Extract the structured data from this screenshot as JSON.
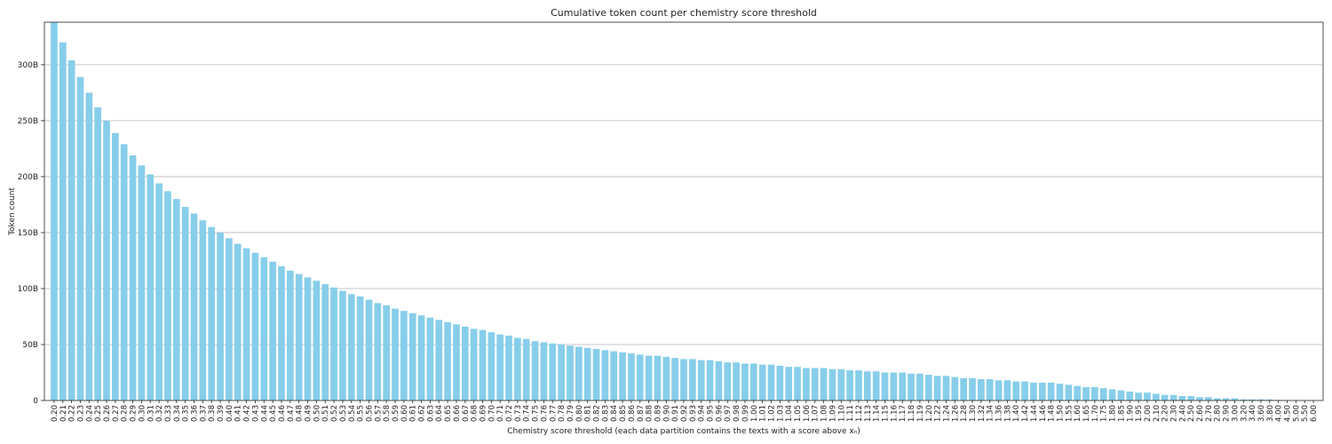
{
  "chart_data": {
    "type": "bar",
    "title": "Cumulative token count per chemistry score threshold",
    "xlabel": "Chemistry score threshold (each data partition contains the texts with a score above xₙ)",
    "ylabel": "Token count",
    "ylim": [
      0,
      338
    ],
    "value_unit": "billions of tokens",
    "yticks": [
      0,
      50,
      100,
      150,
      200,
      250,
      300
    ],
    "ytick_labels": [
      "0",
      "50B",
      "100B",
      "150B",
      "200B",
      "250B",
      "300B"
    ],
    "grid": "y",
    "bar_color": "#87CEEB",
    "categories": [
      "0.20",
      "0.21",
      "0.22",
      "0.23",
      "0.24",
      "0.25",
      "0.26",
      "0.27",
      "0.28",
      "0.29",
      "0.30",
      "0.31",
      "0.32",
      "0.33",
      "0.34",
      "0.35",
      "0.36",
      "0.37",
      "0.38",
      "0.39",
      "0.40",
      "0.41",
      "0.42",
      "0.43",
      "0.44",
      "0.45",
      "0.46",
      "0.47",
      "0.48",
      "0.49",
      "0.50",
      "0.51",
      "0.52",
      "0.53",
      "0.54",
      "0.55",
      "0.56",
      "0.57",
      "0.58",
      "0.59",
      "0.60",
      "0.61",
      "0.62",
      "0.63",
      "0.64",
      "0.65",
      "0.66",
      "0.67",
      "0.68",
      "0.69",
      "0.70",
      "0.71",
      "0.72",
      "0.73",
      "0.74",
      "0.75",
      "0.76",
      "0.77",
      "0.78",
      "0.79",
      "0.80",
      "0.81",
      "0.82",
      "0.83",
      "0.84",
      "0.85",
      "0.86",
      "0.87",
      "0.88",
      "0.89",
      "0.90",
      "0.91",
      "0.92",
      "0.93",
      "0.94",
      "0.95",
      "0.96",
      "0.97",
      "0.98",
      "0.99",
      "1.00",
      "1.01",
      "1.02",
      "1.03",
      "1.04",
      "1.05",
      "1.06",
      "1.07",
      "1.08",
      "1.09",
      "1.10",
      "1.11",
      "1.12",
      "1.13",
      "1.14",
      "1.15",
      "1.16",
      "1.17",
      "1.18",
      "1.19",
      "1.20",
      "1.22",
      "1.24",
      "1.26",
      "1.28",
      "1.30",
      "1.32",
      "1.34",
      "1.36",
      "1.38",
      "1.40",
      "1.42",
      "1.44",
      "1.46",
      "1.48",
      "1.50",
      "1.55",
      "1.60",
      "1.65",
      "1.70",
      "1.75",
      "1.80",
      "1.85",
      "1.90",
      "1.95",
      "2.00",
      "2.10",
      "2.20",
      "2.30",
      "2.40",
      "2.50",
      "2.60",
      "2.70",
      "2.80",
      "2.90",
      "3.00",
      "3.20",
      "3.40",
      "3.60",
      "3.80",
      "4.00",
      "4.50",
      "5.00",
      "5.50",
      "6.00"
    ],
    "values": [
      338,
      320,
      304,
      289,
      275,
      262,
      250,
      239,
      229,
      219,
      210,
      202,
      194,
      187,
      180,
      173,
      167,
      161,
      155,
      150,
      145,
      140,
      136,
      132,
      128,
      124,
      120,
      116,
      113,
      110,
      107,
      104,
      101,
      98,
      95,
      93,
      90,
      87,
      85,
      82,
      80,
      78,
      76,
      74,
      72,
      70,
      68,
      66,
      64,
      63,
      61,
      59,
      58,
      56,
      55,
      53,
      52,
      51,
      50,
      49,
      48,
      47,
      46,
      45,
      44,
      43,
      42,
      41,
      40,
      40,
      39,
      38,
      37,
      37,
      36,
      36,
      35,
      34,
      34,
      33,
      33,
      32,
      32,
      31,
      30,
      30,
      29,
      29,
      29,
      28,
      28,
      27,
      27,
      26,
      26,
      25,
      25,
      25,
      24,
      24,
      23,
      22,
      22,
      21,
      20,
      20,
      19,
      19,
      18,
      18,
      17,
      17,
      16,
      16,
      16,
      15,
      14,
      13,
      12,
      12,
      11,
      10,
      9,
      8,
      7,
      7,
      6,
      5,
      5,
      4,
      4,
      3,
      3,
      2,
      2,
      2,
      1,
      1,
      1,
      1,
      0.5,
      0.3,
      0.1,
      0.05,
      0.02
    ]
  }
}
